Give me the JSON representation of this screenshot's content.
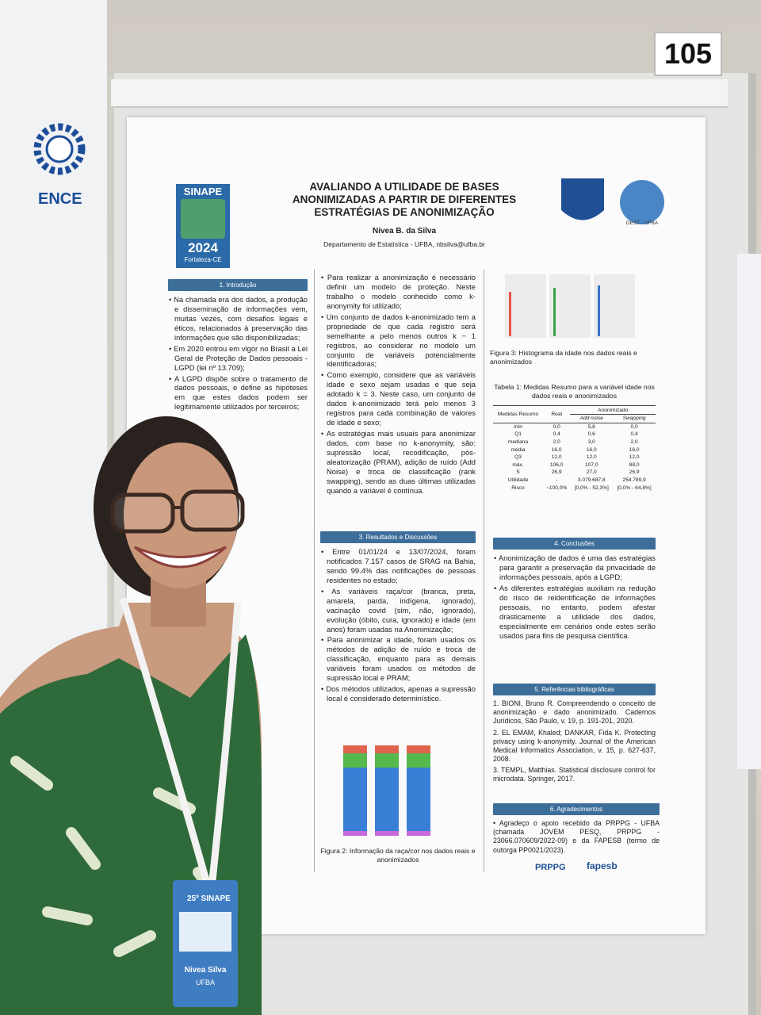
{
  "booth_number": "105",
  "neighbor_poster": {
    "logo": "ENCE"
  },
  "poster": {
    "title": "AVALIANDO A UTILIDADE DE BASES ANONIMIZADAS A PARTIR DE DIFERENTES ESTRATÉGIAS DE ANONIMIZAÇÃO",
    "author": "Nivea B. da Silva",
    "affiliation": "Departamento de Estatística - UFBA, nbsilva@ufba.br",
    "event_logo": {
      "name": "SINAPE",
      "year": "2024",
      "place": "Fortaleza-CE"
    },
    "dept_logo": "DEST - UFBA",
    "introduction": {
      "heading": "1. Introdução",
      "bullets": [
        "Na chamada era dos dados, a produção e disseminação de informações vem, muitas vezes, com desafios legais e éticos, relacionados à preservação das informações que são disponibilizadas;",
        "Em 2020 entrou em vigor no Brasil a Lei Geral de Proteção de Dados pessoais - LGPD (lei nº 13.709);",
        "A LGPD dispõe sobre o tratamento de dados pessoais, e define as hipóteses em que estes dados podem ser legitimamente utilizados por terceiros;"
      ]
    },
    "method": {
      "bullets": [
        "Para realizar a anonimização é necessário definir um modelo de proteção. Neste trabalho o modelo conhecido como k-anonymity foi utilizado;",
        "Um conjunto de dados k-anonimizado tem a propriedade de que cada registro será semelhante a pelo menos outros k − 1 registros, ao considerar no modelo um conjunto de variáveis potencialmente identificadoras;",
        "Como exemplo, considere que as variáveis idade e sexo sejam usadas e que seja adotado k = 3. Neste caso, um conjunto de dados k-anonimizado terá pelo menos 3 registros para cada combinação de valores de idade e sexo;",
        "As estratégias mais usuais para anonimizar dados, com base no k-anonymity, são: supressão local, recodificação, pós-aleatorização (PRAM), adição de ruído (Add Noise) e troca de classificação (rank swapping), sendo as duas últimas utilizadas quando a variável é contínua."
      ]
    },
    "results": {
      "heading": "3. Resultados e Discussões",
      "bullets": [
        "Entre 01/01/24 e 13/07/2024, foram notificados 7.157 casos de SRAG na Bahia, sendo 99.4% das notificações de pessoas residentes no estado;",
        "As variáveis raça/cor (branca, preta, amarela, parda, indígena, ignorado), vacinação covid (sim, não, ignorado), evolução (óbito, cura, ignorado) e idade (em anos) foram usadas na Anonimização;",
        "Para anonimizar a idade, foram usados os métodos de adição de ruído e troca de classificação, enquanto para as demais variáveis foram usados os métodos de supressão local e PRAM;",
        "Dos métodos utilizados, apenas a supressão local é considerado determinístico."
      ]
    },
    "figure2_caption": "Figura 2: Informação da raça/cor nos dados reais e anonimizados",
    "figure3_caption": "Figura 3: Histograma da idade nos dados reais e anonimizados",
    "table": {
      "title": "Tabela 1: Medidas Resumo para a variável idade nos dados reais e anonimizados",
      "header": [
        "Medidas Resumo",
        "Real",
        "Anonimizado"
      ],
      "subheader": [
        "Add noise",
        "Swapping"
      ],
      "rows": [
        [
          "mín",
          "0,0",
          "5,8",
          "0,0"
        ],
        [
          "Q1",
          "0,4",
          "0,6",
          "0,4"
        ],
        [
          "mediana",
          "2,0",
          "3,0",
          "2,0"
        ],
        [
          "média",
          "16,0",
          "16,0",
          "16,0"
        ],
        [
          "Q3",
          "12,0",
          "12,0",
          "12,0"
        ],
        [
          "máx.",
          "106,0",
          "107,0",
          "88,0"
        ],
        [
          "S",
          "26,9",
          "27,0",
          "26,9"
        ],
        [
          "Utilidade",
          "-",
          "3.079.687,8",
          "254.789,9"
        ],
        [
          "Risco",
          "~100,0%",
          "[0,0% - 52,3%]",
          "[0,0% - 64,8%]"
        ]
      ]
    },
    "conclusions": {
      "heading": "4. Conclusões",
      "bullets": [
        "Anonimização de dados é uma das estratégias para garantir a preservação da privacidade de informações pessoais, após a LGPD;",
        "As diferentes estratégias auxiliam na redução do risco de reidentificação de informações pessoais, no entanto, podem afestar drasticamente a utilidade dos dados, especialmente em cenários onde estes serão usados para fins de pesquisa científica."
      ]
    },
    "references": {
      "heading": "5. Referências bibliográficas",
      "items": [
        "1. BIONI, Bruno R. Compreendendo o conceito de anonimização e dado anonimizado. Cadernos Jurídicos, São Paulo, v. 19, p. 191-201, 2020.",
        "2. EL EMAM, Khaled; DANKAR, Fida K. Protecting privacy using k-anonymity. Journal of the American Medical Informatics Association, v. 15, p. 627-637, 2008.",
        "3. TEMPL, Matthias. Statistical disclosure control for microdata. Springer, 2017."
      ]
    },
    "acknowledgements": {
      "heading": "6. Agradecimentos",
      "text": "Agradeço o apoio recebido da PRPPG - UFBA (chamada JOVEM PESQ, PRPPG - 23066.070609/2022-09) e da FAPESB (termo de outorga PP0021/2023)."
    },
    "sponsor_logos": [
      "PRPPG",
      "fapesb"
    ]
  },
  "badge": {
    "event": "25º SINAPE",
    "name": "Nivea Silva",
    "institution": "UFBA"
  }
}
